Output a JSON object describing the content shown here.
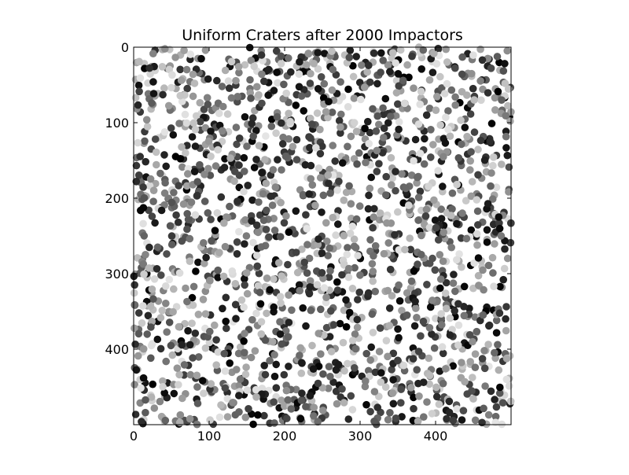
{
  "chart_data": {
    "type": "heatmap",
    "title": "Uniform Craters after 2000 Impactors",
    "xlabel": "",
    "ylabel": "",
    "xlim": [
      0,
      500
    ],
    "ylim": [
      500,
      0
    ],
    "x_ticks": [
      0,
      100,
      200,
      300,
      400
    ],
    "y_ticks": [
      0,
      100,
      200,
      300,
      400
    ],
    "x_tick_labels": [
      "0",
      "100",
      "200",
      "300",
      "400"
    ],
    "y_tick_labels": [
      "0",
      "100",
      "200",
      "300",
      "400"
    ],
    "grid": false,
    "legend": "none",
    "colormap": "gray",
    "image_size": [
      500,
      500
    ],
    "impactor_count": 2000,
    "crater_diameter": 10,
    "background_color": "#ffffff"
  }
}
